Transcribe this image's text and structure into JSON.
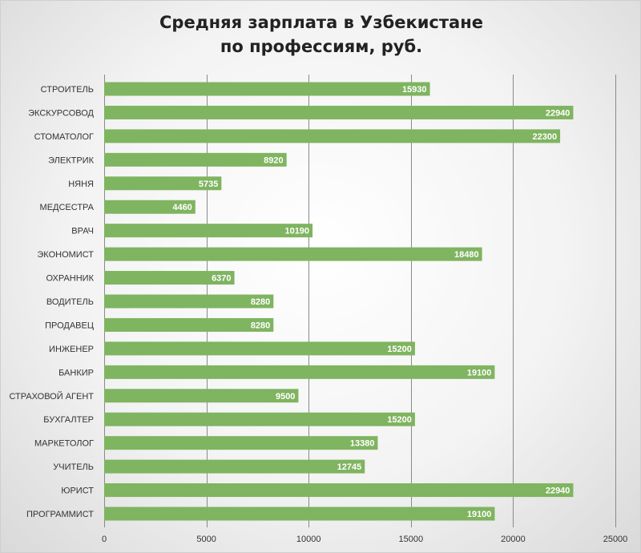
{
  "title_line1": "Средняя зарплата в Узбекистане",
  "title_line2": "по профессиям, руб.",
  "chart_data": {
    "type": "bar",
    "orientation": "horizontal",
    "title": "Средняя зарплата в Узбекистане по профессиям, руб.",
    "categories": [
      "СТРОИТЕЛЬ",
      "ЭКСКУРСОВОД",
      "СТОМАТОЛОГ",
      "ЭЛЕКТРИК",
      "НЯНЯ",
      "МЕДСЕСТРА",
      "ВРАЧ",
      "ЭКОНОМИСТ",
      "ОХРАННИК",
      "ВОДИТЕЛЬ",
      "ПРОДАВЕЦ",
      "ИНЖЕНЕР",
      "БАНКИР",
      "СТРАХОВОЙ АГЕНТ",
      "БУХГАЛТЕР",
      "МАРКЕТОЛОГ",
      "УЧИТЕЛЬ",
      "ЮРИСТ",
      "ПРОГРАММИСТ"
    ],
    "values": [
      15930,
      22940,
      22300,
      8920,
      5735,
      4460,
      10190,
      18480,
      6370,
      8280,
      8280,
      15200,
      19100,
      9500,
      15200,
      13380,
      12745,
      22940,
      19100
    ],
    "xlim": [
      0,
      25000
    ],
    "xticks": [
      0,
      5000,
      10000,
      15000,
      20000,
      25000
    ],
    "grid": "vertical",
    "bar_color": "#7fb460",
    "grid_color": "#8a8a8a",
    "legend": "none"
  }
}
